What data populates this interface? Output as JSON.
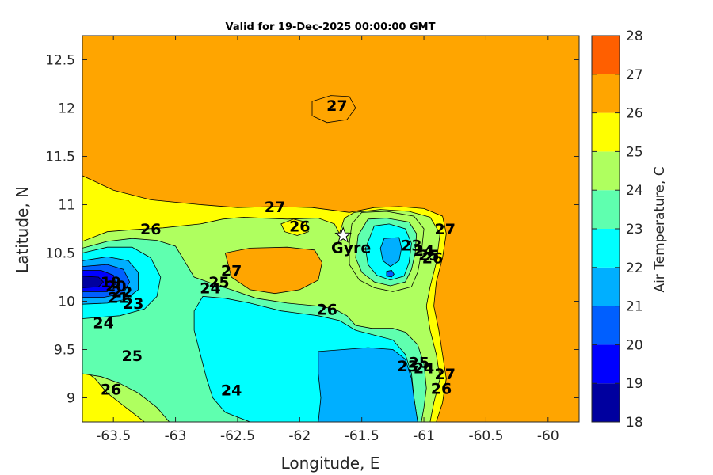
{
  "chart_data": {
    "type": "contour",
    "title": "Valid for 19-Dec-2025 00:00:00 GMT",
    "xlabel": "Longitude, E",
    "ylabel": "Latitude, N",
    "xlim": [
      -63.75,
      -59.75
    ],
    "ylim": [
      8.75,
      12.75
    ],
    "xticks": [
      -63.5,
      -63,
      -62.5,
      -62,
      -61.5,
      -61,
      -60.5,
      -60
    ],
    "xtick_labels": [
      "-63.5",
      "-63",
      "-62.5",
      "-62",
      "-61.5",
      "-61",
      "-60.5",
      "-60"
    ],
    "yticks": [
      9,
      9.5,
      10,
      10.5,
      11,
      11.5,
      12,
      12.5
    ],
    "ytick_labels": [
      "9",
      "9.5",
      "10",
      "10.5",
      "11",
      "11.5",
      "12",
      "12.5"
    ],
    "colorbar": {
      "label": "Air Temperature, C",
      "ticks": [
        18,
        19,
        20,
        21,
        22,
        23,
        24,
        25,
        26,
        27,
        28
      ],
      "tick_labels": [
        "18",
        "19",
        "20",
        "21",
        "22",
        "23",
        "24",
        "25",
        "26",
        "27",
        "28"
      ],
      "colors": [
        "#00009f",
        "#0000ff",
        "#005fff",
        "#00afff",
        "#00ffff",
        "#5fffaf",
        "#afff5f",
        "#ffff00",
        "#ffa500",
        "#ff5f00",
        "#ff0000"
      ]
    },
    "marker": {
      "label": "Gyre",
      "lon": -61.65,
      "lat": 10.68
    },
    "contour_labels": [
      {
        "text": "27",
        "lon": -61.7,
        "lat": 12.03
      },
      {
        "text": "27",
        "lon": -62.2,
        "lat": 10.98
      },
      {
        "text": "26",
        "lon": -63.2,
        "lat": 10.75
      },
      {
        "text": "26",
        "lon": -62.0,
        "lat": 10.78
      },
      {
        "text": "27",
        "lon": -60.83,
        "lat": 10.75
      },
      {
        "text": "23",
        "lon": -61.1,
        "lat": 10.58
      },
      {
        "text": "24",
        "lon": -61.0,
        "lat": 10.53
      },
      {
        "text": "25",
        "lon": -60.96,
        "lat": 10.48
      },
      {
        "text": "26",
        "lon": -60.93,
        "lat": 10.45
      },
      {
        "text": "27",
        "lon": -62.55,
        "lat": 10.32
      },
      {
        "text": "25",
        "lon": -62.65,
        "lat": 10.2
      },
      {
        "text": "24",
        "lon": -62.72,
        "lat": 10.14
      },
      {
        "text": "19",
        "lon": -63.52,
        "lat": 10.2
      },
      {
        "text": "20",
        "lon": -63.48,
        "lat": 10.16
      },
      {
        "text": "22",
        "lon": -63.43,
        "lat": 10.1
      },
      {
        "text": "21",
        "lon": -63.46,
        "lat": 10.04
      },
      {
        "text": "23",
        "lon": -63.34,
        "lat": 9.98
      },
      {
        "text": "26",
        "lon": -61.78,
        "lat": 9.92
      },
      {
        "text": "24",
        "lon": -63.58,
        "lat": 9.78
      },
      {
        "text": "25",
        "lon": -63.35,
        "lat": 9.44
      },
      {
        "text": "23",
        "lon": -61.13,
        "lat": 9.33
      },
      {
        "text": "24",
        "lon": -61.0,
        "lat": 9.31
      },
      {
        "text": "25",
        "lon": -61.04,
        "lat": 9.37
      },
      {
        "text": "26",
        "lon": -60.86,
        "lat": 9.1
      },
      {
        "text": "27",
        "lon": -60.83,
        "lat": 9.25
      },
      {
        "text": "26",
        "lon": -63.52,
        "lat": 9.09
      },
      {
        "text": "24",
        "lon": -62.55,
        "lat": 9.08
      }
    ],
    "regions": [
      {
        "level": 26,
        "points": [
          [
            -63.75,
            11.3
          ],
          [
            -63.5,
            11.15
          ],
          [
            -63.2,
            11.05
          ],
          [
            -62.8,
            11.0
          ],
          [
            -62.5,
            10.97
          ],
          [
            -62.2,
            10.98
          ],
          [
            -61.9,
            10.97
          ],
          [
            -61.72,
            10.94
          ],
          [
            -61.6,
            10.92
          ],
          [
            -61.4,
            10.97
          ],
          [
            -61.2,
            10.98
          ],
          [
            -61.0,
            10.96
          ],
          [
            -60.85,
            10.88
          ],
          [
            -60.82,
            10.7
          ],
          [
            -60.85,
            10.45
          ],
          [
            -60.9,
            10.2
          ],
          [
            -60.92,
            9.95
          ],
          [
            -60.88,
            9.7
          ],
          [
            -60.85,
            9.45
          ],
          [
            -60.82,
            9.2
          ],
          [
            -60.85,
            8.95
          ],
          [
            -60.9,
            8.75
          ],
          [
            -63.75,
            8.75
          ]
        ]
      },
      {
        "level": 25,
        "points": [
          [
            -63.75,
            10.62
          ],
          [
            -63.55,
            10.72
          ],
          [
            -63.35,
            10.74
          ],
          [
            -63.1,
            10.76
          ],
          [
            -62.95,
            10.78
          ],
          [
            -62.8,
            10.8
          ],
          [
            -62.62,
            10.85
          ],
          [
            -62.45,
            10.87
          ],
          [
            -62.3,
            10.86
          ],
          [
            -62.1,
            10.85
          ],
          [
            -61.85,
            10.86
          ],
          [
            -61.72,
            10.8
          ],
          [
            -61.68,
            10.7
          ],
          [
            -61.64,
            10.86
          ],
          [
            -61.56,
            10.92
          ],
          [
            -61.35,
            10.95
          ],
          [
            -61.12,
            10.93
          ],
          [
            -60.95,
            10.87
          ],
          [
            -60.87,
            10.7
          ],
          [
            -60.9,
            10.4
          ],
          [
            -60.95,
            10.15
          ],
          [
            -60.98,
            9.95
          ],
          [
            -60.95,
            9.7
          ],
          [
            -60.9,
            9.45
          ],
          [
            -60.87,
            9.2
          ],
          [
            -60.92,
            8.95
          ],
          [
            -60.95,
            8.75
          ],
          [
            -63.25,
            8.75
          ],
          [
            -63.4,
            8.9
          ],
          [
            -63.55,
            9.05
          ],
          [
            -63.65,
            9.2
          ],
          [
            -63.75,
            9.3
          ]
        ]
      },
      {
        "level": 24,
        "points": [
          [
            -63.75,
            10.55
          ],
          [
            -63.55,
            10.62
          ],
          [
            -63.35,
            10.65
          ],
          [
            -63.15,
            10.63
          ],
          [
            -63.0,
            10.57
          ],
          [
            -62.92,
            10.4
          ],
          [
            -62.85,
            10.25
          ],
          [
            -62.7,
            10.18
          ],
          [
            -62.55,
            10.12
          ],
          [
            -62.35,
            10.03
          ],
          [
            -62.1,
            9.98
          ],
          [
            -61.85,
            9.95
          ],
          [
            -61.72,
            9.92
          ],
          [
            -61.62,
            9.85
          ],
          [
            -61.55,
            9.75
          ],
          [
            -61.42,
            9.72
          ],
          [
            -61.25,
            9.72
          ],
          [
            -61.15,
            9.68
          ],
          [
            -61.05,
            9.55
          ],
          [
            -61.0,
            9.35
          ],
          [
            -60.98,
            9.1
          ],
          [
            -61.0,
            8.9
          ],
          [
            -61.02,
            8.75
          ],
          [
            -63.05,
            8.75
          ],
          [
            -63.15,
            8.9
          ],
          [
            -63.3,
            9.05
          ],
          [
            -63.45,
            9.15
          ],
          [
            -63.6,
            9.22
          ],
          [
            -63.75,
            9.25
          ]
        ]
      },
      {
        "level": 23,
        "points": [
          [
            -63.75,
            10.5
          ],
          [
            -63.55,
            10.56
          ],
          [
            -63.35,
            10.56
          ],
          [
            -63.2,
            10.45
          ],
          [
            -63.12,
            10.25
          ],
          [
            -63.15,
            10.05
          ],
          [
            -63.25,
            9.92
          ],
          [
            -63.45,
            9.85
          ],
          [
            -63.75,
            9.82
          ]
        ]
      },
      {
        "level": 23,
        "points": [
          [
            -62.78,
            10.05
          ],
          [
            -62.6,
            10.03
          ],
          [
            -62.4,
            9.98
          ],
          [
            -62.15,
            9.9
          ],
          [
            -61.85,
            9.85
          ],
          [
            -61.68,
            9.8
          ],
          [
            -61.55,
            9.7
          ],
          [
            -61.4,
            9.65
          ],
          [
            -61.25,
            9.6
          ],
          [
            -61.15,
            9.45
          ],
          [
            -61.1,
            9.25
          ],
          [
            -61.08,
            9.0
          ],
          [
            -61.05,
            8.75
          ],
          [
            -62.4,
            8.75
          ],
          [
            -62.6,
            8.85
          ],
          [
            -62.7,
            9.0
          ],
          [
            -62.75,
            9.2
          ],
          [
            -62.8,
            9.45
          ],
          [
            -62.85,
            9.7
          ],
          [
            -62.85,
            9.9
          ]
        ]
      },
      {
        "level": 22,
        "points": [
          [
            -61.85,
            9.48
          ],
          [
            -61.65,
            9.5
          ],
          [
            -61.45,
            9.52
          ],
          [
            -61.25,
            9.5
          ],
          [
            -61.15,
            9.4
          ],
          [
            -61.1,
            9.2
          ],
          [
            -61.08,
            9.0
          ],
          [
            -61.05,
            8.75
          ],
          [
            -61.85,
            8.75
          ],
          [
            -61.83,
            9.0
          ],
          [
            -61.85,
            9.25
          ]
        ]
      },
      {
        "level": 22,
        "points": [
          [
            -63.75,
            10.42
          ],
          [
            -63.55,
            10.46
          ],
          [
            -63.38,
            10.42
          ],
          [
            -63.3,
            10.3
          ],
          [
            -63.3,
            10.12
          ],
          [
            -63.4,
            10.02
          ],
          [
            -63.55,
            9.98
          ],
          [
            -63.75,
            9.97
          ]
        ]
      },
      {
        "level": 21,
        "points": [
          [
            -63.75,
            10.36
          ],
          [
            -63.55,
            10.38
          ],
          [
            -63.42,
            10.33
          ],
          [
            -63.37,
            10.2
          ],
          [
            -63.42,
            10.08
          ],
          [
            -63.58,
            10.04
          ],
          [
            -63.75,
            10.04
          ]
        ]
      },
      {
        "level": 20,
        "points": [
          [
            -63.75,
            10.32
          ],
          [
            -63.6,
            10.32
          ],
          [
            -63.5,
            10.27
          ],
          [
            -63.48,
            10.18
          ],
          [
            -63.55,
            10.1
          ],
          [
            -63.75,
            10.1
          ]
        ]
      },
      {
        "level": 19,
        "points": [
          [
            -63.75,
            10.26
          ],
          [
            -63.62,
            10.25
          ],
          [
            -63.58,
            10.2
          ],
          [
            -63.62,
            10.15
          ],
          [
            -63.75,
            10.14
          ]
        ]
      },
      {
        "level": 25,
        "points": [
          [
            -61.5,
            10.92
          ],
          [
            -61.3,
            10.93
          ],
          [
            -61.08,
            10.88
          ],
          [
            -61.0,
            10.75
          ],
          [
            -61.02,
            10.5
          ],
          [
            -61.05,
            10.3
          ],
          [
            -61.1,
            10.15
          ],
          [
            -61.25,
            10.1
          ],
          [
            -61.4,
            10.14
          ],
          [
            -61.52,
            10.22
          ],
          [
            -61.6,
            10.38
          ],
          [
            -61.6,
            10.6
          ],
          [
            -61.58,
            10.8
          ]
        ]
      },
      {
        "level": 24,
        "points": [
          [
            -61.45,
            10.85
          ],
          [
            -61.3,
            10.86
          ],
          [
            -61.12,
            10.82
          ],
          [
            -61.06,
            10.7
          ],
          [
            -61.07,
            10.5
          ],
          [
            -61.1,
            10.33
          ],
          [
            -61.15,
            10.2
          ],
          [
            -61.27,
            10.16
          ],
          [
            -61.4,
            10.2
          ],
          [
            -61.5,
            10.3
          ],
          [
            -61.55,
            10.45
          ],
          [
            -61.53,
            10.68
          ]
        ]
      },
      {
        "level": 23,
        "points": [
          [
            -61.4,
            10.78
          ],
          [
            -61.28,
            10.8
          ],
          [
            -61.15,
            10.75
          ],
          [
            -61.1,
            10.6
          ],
          [
            -61.12,
            10.4
          ],
          [
            -61.16,
            10.26
          ],
          [
            -61.27,
            10.22
          ],
          [
            -61.38,
            10.27
          ],
          [
            -61.45,
            10.38
          ],
          [
            -61.47,
            10.55
          ]
        ]
      },
      {
        "level": 22,
        "points": [
          [
            -61.32,
            10.65
          ],
          [
            -61.2,
            10.66
          ],
          [
            -61.18,
            10.55
          ],
          [
            -61.2,
            10.42
          ],
          [
            -61.27,
            10.36
          ],
          [
            -61.33,
            10.42
          ],
          [
            -61.35,
            10.55
          ]
        ]
      },
      {
        "level": 21,
        "points": [
          [
            -61.3,
            10.31
          ],
          [
            -61.26,
            10.32
          ],
          [
            -61.24,
            10.28
          ],
          [
            -61.26,
            10.25
          ],
          [
            -61.3,
            10.26
          ]
        ]
      },
      {
        "level": 27,
        "points": [
          [
            -62.6,
            10.5
          ],
          [
            -62.4,
            10.55
          ],
          [
            -62.1,
            10.56
          ],
          [
            -61.88,
            10.53
          ],
          [
            -61.82,
            10.4
          ],
          [
            -61.85,
            10.22
          ],
          [
            -62.0,
            10.12
          ],
          [
            -62.2,
            10.08
          ],
          [
            -62.4,
            10.12
          ],
          [
            -62.55,
            10.25
          ]
        ]
      },
      {
        "level": 26,
        "points": [
          [
            -62.15,
            10.8
          ],
          [
            -62.05,
            10.85
          ],
          [
            -61.95,
            10.82
          ],
          [
            -61.93,
            10.72
          ],
          [
            -62.02,
            10.68
          ],
          [
            -62.12,
            10.72
          ]
        ]
      },
      {
        "level": 27,
        "points": [
          [
            -61.9,
            12.07
          ],
          [
            -61.75,
            12.13
          ],
          [
            -61.6,
            12.12
          ],
          [
            -61.55,
            12.0
          ],
          [
            -61.62,
            11.88
          ],
          [
            -61.78,
            11.85
          ],
          [
            -61.9,
            11.92
          ]
        ]
      }
    ]
  }
}
